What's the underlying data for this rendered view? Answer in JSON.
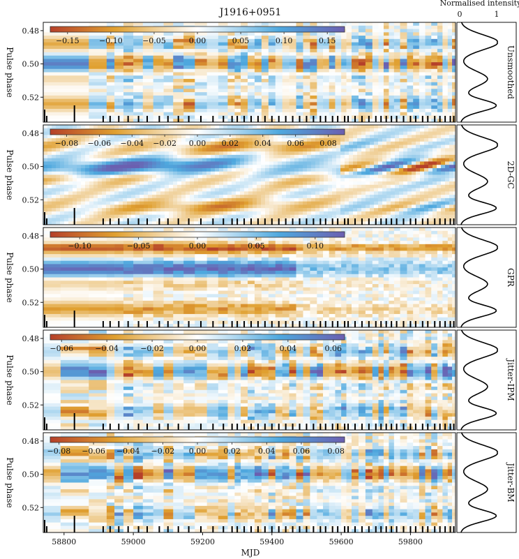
{
  "title": "J1916+0951",
  "profile_header": "Normalised intensity",
  "profile_ticks": [
    "0",
    "1"
  ],
  "xlabel": "MJD",
  "ylabel": "Pulse phase",
  "x_ticks": [
    58800,
    59000,
    59200,
    59400,
    59600,
    59800
  ],
  "y_ticks": [
    "0.48",
    "0.50",
    "0.52"
  ],
  "colors": {
    "negative": "#b5402a",
    "mid_negative": "#e0a030",
    "zero": "#ffffff",
    "mid_positive": "#4ea8de",
    "positive": "#6b5fb0"
  },
  "chart_data": [
    {
      "type": "heatmap",
      "panel": "Unsmoothed",
      "xlabel": "",
      "ylabel": "Pulse phase",
      "xlim": [
        58740,
        59930
      ],
      "ylim": [
        0.535,
        0.475
      ],
      "colorbar_ticks": [
        "−0.15",
        "−0.10",
        "−0.05",
        "0.00",
        "0.05",
        "0.10",
        "0.15"
      ],
      "colorbar_range": [
        -0.17,
        0.17
      ],
      "colormap": "diverging orange-white-blue"
    },
    {
      "type": "heatmap",
      "panel": "2D-GC",
      "xlabel": "",
      "ylabel": "Pulse phase",
      "xlim": [
        58740,
        59930
      ],
      "ylim": [
        0.535,
        0.475
      ],
      "colorbar_ticks": [
        "−0.08",
        "−0.06",
        "−0.04",
        "−0.02",
        "0.00",
        "0.02",
        "0.04",
        "0.06",
        "0.08"
      ],
      "colorbar_range": [
        -0.09,
        0.09
      ],
      "colormap": "diverging orange-white-blue"
    },
    {
      "type": "heatmap",
      "panel": "GPR",
      "xlabel": "",
      "ylabel": "Pulse phase",
      "xlim": [
        58740,
        59930
      ],
      "ylim": [
        0.535,
        0.475
      ],
      "colorbar_ticks": [
        "−0.10",
        "−0.05",
        "0.00",
        "0.05",
        "0.10"
      ],
      "colorbar_range": [
        -0.125,
        0.125
      ],
      "colormap": "diverging orange-white-blue"
    },
    {
      "type": "heatmap",
      "panel": "Jitter-IPM",
      "xlabel": "",
      "ylabel": "Pulse phase",
      "xlim": [
        58740,
        59930
      ],
      "ylim": [
        0.535,
        0.475
      ],
      "colorbar_ticks": [
        "−0.06",
        "−0.04",
        "−0.02",
        "0.00",
        "0.02",
        "0.04",
        "0.06"
      ],
      "colorbar_range": [
        -0.065,
        0.065
      ],
      "colormap": "diverging orange-white-blue"
    },
    {
      "type": "heatmap",
      "panel": "Jitter-BM",
      "xlabel": "MJD",
      "ylabel": "Pulse phase",
      "xlim": [
        58740,
        59930
      ],
      "ylim": [
        0.535,
        0.475
      ],
      "colorbar_ticks": [
        "−0.08",
        "−0.06",
        "−0.04",
        "−0.02",
        "0.00",
        "0.02",
        "0.04",
        "0.06",
        "0.08"
      ],
      "colorbar_range": [
        -0.085,
        0.085
      ],
      "colormap": "diverging orange-white-blue"
    },
    {
      "type": "line",
      "panel": "profile",
      "xlabel": "Normalised intensity",
      "xlim": [
        0,
        1
      ],
      "ylim": [
        0.535,
        0.475
      ],
      "description_phase_peaks": [
        0.485,
        0.508,
        0.525
      ],
      "description_phase_troughs": [
        0.498,
        0.517
      ]
    }
  ],
  "observation_mjds": [
    58750,
    58830,
    58913,
    58933,
    58958,
    58985,
    59015,
    59040,
    59075,
    59100,
    59130,
    59160,
    59195,
    59230,
    59260,
    59285,
    59300,
    59320,
    59340,
    59360,
    59380,
    59400,
    59420,
    59440,
    59460,
    59480,
    59500,
    59520,
    59540,
    59555,
    59575,
    59590,
    59610,
    59620,
    59640,
    59660,
    59680,
    59700,
    59715,
    59730,
    59745,
    59760,
    59780,
    59800,
    59815,
    59835,
    59850,
    59870,
    59885,
    59900,
    59915,
    59925
  ]
}
